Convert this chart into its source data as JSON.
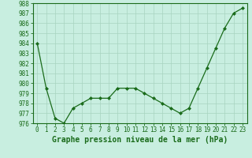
{
  "x": [
    0,
    1,
    2,
    3,
    4,
    5,
    6,
    7,
    8,
    9,
    10,
    11,
    12,
    13,
    14,
    15,
    16,
    17,
    18,
    19,
    20,
    21,
    22,
    23
  ],
  "y": [
    984.0,
    979.5,
    976.5,
    976.0,
    977.5,
    978.0,
    978.5,
    978.5,
    978.5,
    979.5,
    979.5,
    979.5,
    979.0,
    978.5,
    978.0,
    977.5,
    977.0,
    977.5,
    979.5,
    981.5,
    983.5,
    985.5,
    987.0,
    987.5
  ],
  "line_color": "#1a6b1a",
  "marker": "D",
  "marker_size": 2,
  "bg_color": "#c8eee0",
  "grid_color": "#a8d4c0",
  "xlabel": "Graphe pression niveau de la mer (hPa)",
  "xlabel_fontsize": 7,
  "ylim": [
    976,
    988
  ],
  "xlim": [
    -0.5,
    23.5
  ],
  "yticks": [
    976,
    977,
    978,
    979,
    980,
    981,
    982,
    983,
    984,
    985,
    986,
    987,
    988
  ],
  "xticks": [
    0,
    1,
    2,
    3,
    4,
    5,
    6,
    7,
    8,
    9,
    10,
    11,
    12,
    13,
    14,
    15,
    16,
    17,
    18,
    19,
    20,
    21,
    22,
    23
  ],
  "tick_fontsize": 5.5,
  "tick_color": "#1a6b1a",
  "axis_color": "#1a6b1a"
}
